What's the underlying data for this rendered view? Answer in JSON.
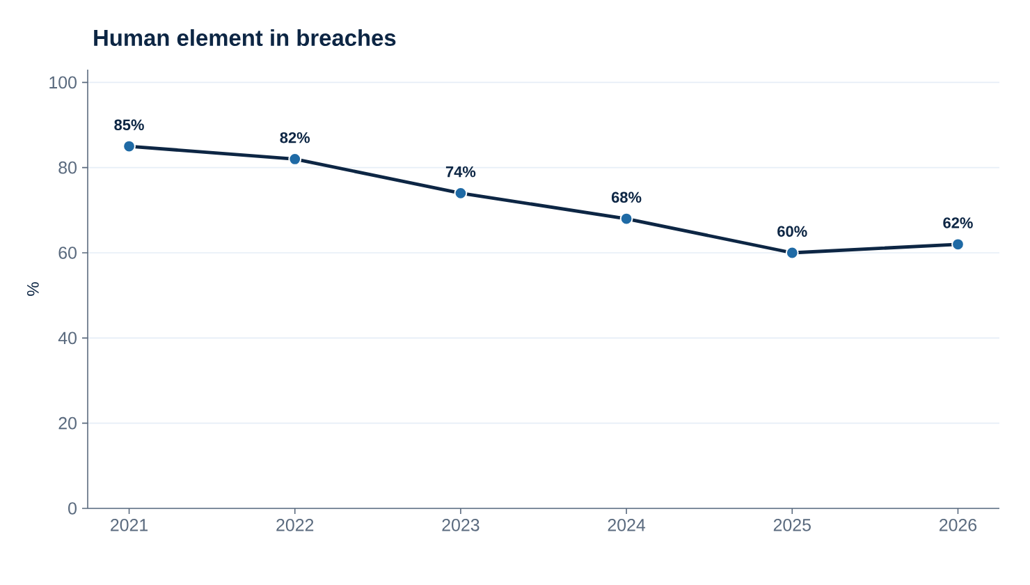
{
  "chart_data": {
    "type": "line",
    "title": "Human element in breaches",
    "ylabel": "%",
    "categories": [
      "2021",
      "2022",
      "2023",
      "2024",
      "2025",
      "2026"
    ],
    "series": [
      {
        "color": "#0d2644",
        "colors": [
          "#1f6aa5",
          "#1f6aa5",
          "#1f6aa5",
          "#1f6aa5",
          "#1f6aa5",
          "#1f6aa5"
        ],
        "values": [
          85,
          82,
          74,
          68,
          60,
          62
        ],
        "value_labels": [
          "85%",
          "82%",
          "74%",
          "68%",
          "60%",
          "62%"
        ]
      }
    ],
    "ylim": [
      0,
      103
    ],
    "yticks": [
      0,
      20,
      40,
      60,
      80,
      100
    ],
    "grid": "y",
    "marker": "circle",
    "line_style": "solid"
  }
}
